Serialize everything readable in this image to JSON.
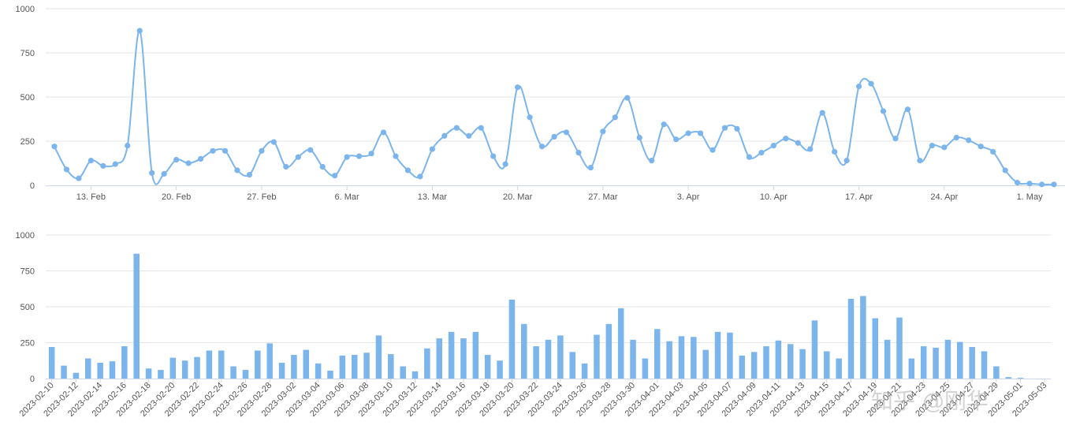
{
  "colors": {
    "series": "#7cb5ec",
    "grid": "#e6e6e6",
    "axis": "#ccd6eb",
    "text": "#555555"
  },
  "watermark": "知乎 @刚华",
  "chart_data": [
    {
      "type": "line",
      "x_start": "2023-02-10",
      "x_end": "2023-05-03",
      "x_tick_labels": [
        "13. Feb",
        "20. Feb",
        "27. Feb",
        "6. Mar",
        "13. Mar",
        "20. Mar",
        "27. Mar",
        "3. Apr",
        "10. Apr",
        "17. Apr",
        "24. Apr",
        "1. May"
      ],
      "x_tick_dates": [
        "2023-02-13",
        "2023-02-20",
        "2023-02-27",
        "2023-03-06",
        "2023-03-13",
        "2023-03-20",
        "2023-03-27",
        "2023-04-03",
        "2023-04-10",
        "2023-04-17",
        "2023-04-24",
        "2023-05-01"
      ],
      "y_tick_labels": [
        "0",
        "250",
        "500",
        "750",
        "1000"
      ],
      "ylim": [
        0,
        1000
      ],
      "grid": true,
      "smooth": true,
      "markers": true,
      "values": [
        220,
        90,
        40,
        140,
        110,
        120,
        225,
        875,
        70,
        65,
        145,
        125,
        150,
        195,
        195,
        85,
        60,
        195,
        245,
        105,
        160,
        200,
        105,
        55,
        160,
        165,
        180,
        300,
        165,
        85,
        50,
        205,
        280,
        325,
        280,
        325,
        165,
        120,
        555,
        385,
        220,
        275,
        300,
        185,
        100,
        305,
        385,
        495,
        270,
        140,
        345,
        260,
        295,
        295,
        200,
        325,
        320,
        160,
        185,
        225,
        265,
        240,
        205,
        410,
        190,
        140,
        560,
        575,
        420,
        265,
        430,
        140,
        225,
        215,
        270,
        255,
        220,
        190,
        85,
        15,
        10,
        5,
        5
      ]
    },
    {
      "type": "bar",
      "categories": [
        "2023-02-10",
        "2023-02-11",
        "2023-02-12",
        "2023-02-13",
        "2023-02-14",
        "2023-02-15",
        "2023-02-16",
        "2023-02-17",
        "2023-02-18",
        "2023-02-19",
        "2023-02-20",
        "2023-02-21",
        "2023-02-22",
        "2023-02-23",
        "2023-02-24",
        "2023-02-25",
        "2023-02-26",
        "2023-02-27",
        "2023-02-28",
        "2023-03-01",
        "2023-03-02",
        "2023-03-03",
        "2023-03-04",
        "2023-03-05",
        "2023-03-06",
        "2023-03-07",
        "2023-03-08",
        "2023-03-09",
        "2023-03-10",
        "2023-03-11",
        "2023-03-12",
        "2023-03-13",
        "2023-03-14",
        "2023-03-15",
        "2023-03-16",
        "2023-03-17",
        "2023-03-18",
        "2023-03-19",
        "2023-03-20",
        "2023-03-21",
        "2023-03-22",
        "2023-03-23",
        "2023-03-24",
        "2023-03-25",
        "2023-03-26",
        "2023-03-27",
        "2023-03-28",
        "2023-03-29",
        "2023-03-30",
        "2023-03-31",
        "2023-04-01",
        "2023-04-02",
        "2023-04-03",
        "2023-04-04",
        "2023-04-05",
        "2023-04-06",
        "2023-04-07",
        "2023-04-08",
        "2023-04-09",
        "2023-04-10",
        "2023-04-11",
        "2023-04-12",
        "2023-04-13",
        "2023-04-14",
        "2023-04-15",
        "2023-04-16",
        "2023-04-17",
        "2023-04-18",
        "2023-04-19",
        "2023-04-20",
        "2023-04-21",
        "2023-04-22",
        "2023-04-23",
        "2023-04-24",
        "2023-04-25",
        "2023-04-26",
        "2023-04-27",
        "2023-04-28",
        "2023-04-29",
        "2023-04-30",
        "2023-05-01",
        "2023-05-02",
        "2023-05-03"
      ],
      "x_tick_labels": [
        "2023-02-10",
        "2023-02-12",
        "2023-02-14",
        "2023-02-16",
        "2023-02-18",
        "2023-02-20",
        "2023-02-22",
        "2023-02-24",
        "2023-02-26",
        "2023-02-28",
        "2023-03-02",
        "2023-03-04",
        "2023-03-06",
        "2023-03-08",
        "2023-03-10",
        "2023-03-12",
        "2023-03-14",
        "2023-03-16",
        "2023-03-18",
        "2023-03-20",
        "2023-03-22",
        "2023-03-24",
        "2023-03-26",
        "2023-03-28",
        "2023-03-30",
        "2023-04-01",
        "2023-04-03",
        "2023-04-05",
        "2023-04-07",
        "2023-04-09",
        "2023-04-11",
        "2023-04-13",
        "2023-04-15",
        "2023-04-17",
        "2023-04-19",
        "2023-04-21",
        "2023-04-23",
        "2023-04-25",
        "2023-04-27",
        "2023-04-29",
        "2023-05-01",
        "2023-05-03"
      ],
      "y_tick_labels": [
        "0",
        "250",
        "500",
        "750",
        "1000"
      ],
      "ylim": [
        0,
        1000
      ],
      "grid": true,
      "values": [
        220,
        90,
        40,
        140,
        110,
        120,
        225,
        870,
        70,
        60,
        145,
        125,
        150,
        195,
        195,
        85,
        60,
        195,
        245,
        110,
        165,
        200,
        105,
        55,
        160,
        165,
        180,
        300,
        170,
        85,
        50,
        210,
        280,
        325,
        280,
        325,
        165,
        125,
        550,
        380,
        225,
        270,
        300,
        185,
        105,
        305,
        380,
        490,
        270,
        140,
        345,
        260,
        295,
        290,
        200,
        325,
        320,
        160,
        185,
        225,
        265,
        240,
        205,
        405,
        190,
        140,
        555,
        575,
        420,
        270,
        425,
        140,
        225,
        215,
        270,
        255,
        220,
        190,
        85,
        10,
        5,
        0,
        0
      ]
    }
  ]
}
